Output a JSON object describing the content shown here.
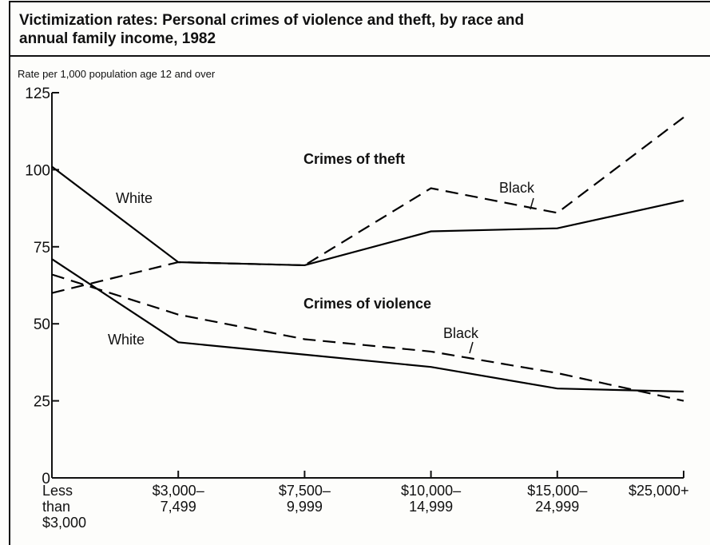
{
  "chart_data": {
    "type": "line",
    "title": "Victimization rates: Personal crimes of violence and theft, by race and annual family income, 1982",
    "y_label": "Rate per 1,000 population age 12 and over",
    "categories": [
      "Less\nthan\n$3,000",
      "$3,000–\n7,499",
      "$7,500–\n9,999",
      "$10,000–\n14,999",
      "$15,000–\n24,999",
      "$25,000+"
    ],
    "series": [
      {
        "name": "White",
        "color": "#000000",
        "dashed": false,
        "values": [
          101,
          70,
          69,
          80,
          81,
          90
        ]
      },
      {
        "name": "Black",
        "color": "#000000",
        "dashed": true,
        "values": [
          60,
          70,
          69,
          94,
          86,
          117
        ]
      },
      {
        "name": "White",
        "color": "#000000",
        "dashed": false,
        "values": [
          71,
          44,
          40,
          36,
          29,
          28
        ]
      },
      {
        "name": "Black",
        "color": "#000000",
        "dashed": true,
        "values": [
          66,
          53,
          45,
          41,
          34,
          25
        ]
      }
    ],
    "annotations": [
      "Crimes of theft",
      "Crimes of violence"
    ],
    "ylim": [
      0,
      125
    ],
    "yticks": [
      0,
      25,
      50,
      75,
      100,
      125
    ]
  }
}
